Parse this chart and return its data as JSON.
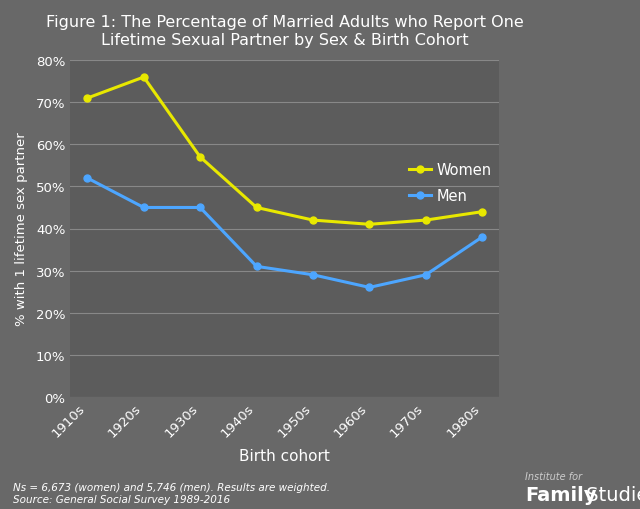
{
  "title": "Figure 1: The Percentage of Married Adults who Report One\nLifetime Sexual Partner by Sex & Birth Cohort",
  "xlabel": "Birth cohort",
  "ylabel": "% with 1 lifetime sex partner",
  "categories": [
    "1910s",
    "1920s",
    "1930s",
    "1940s",
    "1950s",
    "1960s",
    "1970s",
    "1980s"
  ],
  "women": [
    71,
    76,
    57,
    45,
    42,
    41,
    42,
    44
  ],
  "men": [
    52,
    45,
    45,
    31,
    29,
    26,
    29,
    38
  ],
  "women_color": "#e8e800",
  "men_color": "#4da6ff",
  "background_color": "#686868",
  "plot_bg_color": "#5c5c5c",
  "text_color": "#ffffff",
  "grid_color": "#888888",
  "ylim": [
    0,
    80
  ],
  "yticks": [
    0,
    10,
    20,
    30,
    40,
    50,
    60,
    70,
    80
  ],
  "footnote": "Ns = 6,673 (women) and 5,746 (men). Results are weighted.\nSource: General Social Survey 1989-2016",
  "line_width": 2.2,
  "marker_size": 5
}
